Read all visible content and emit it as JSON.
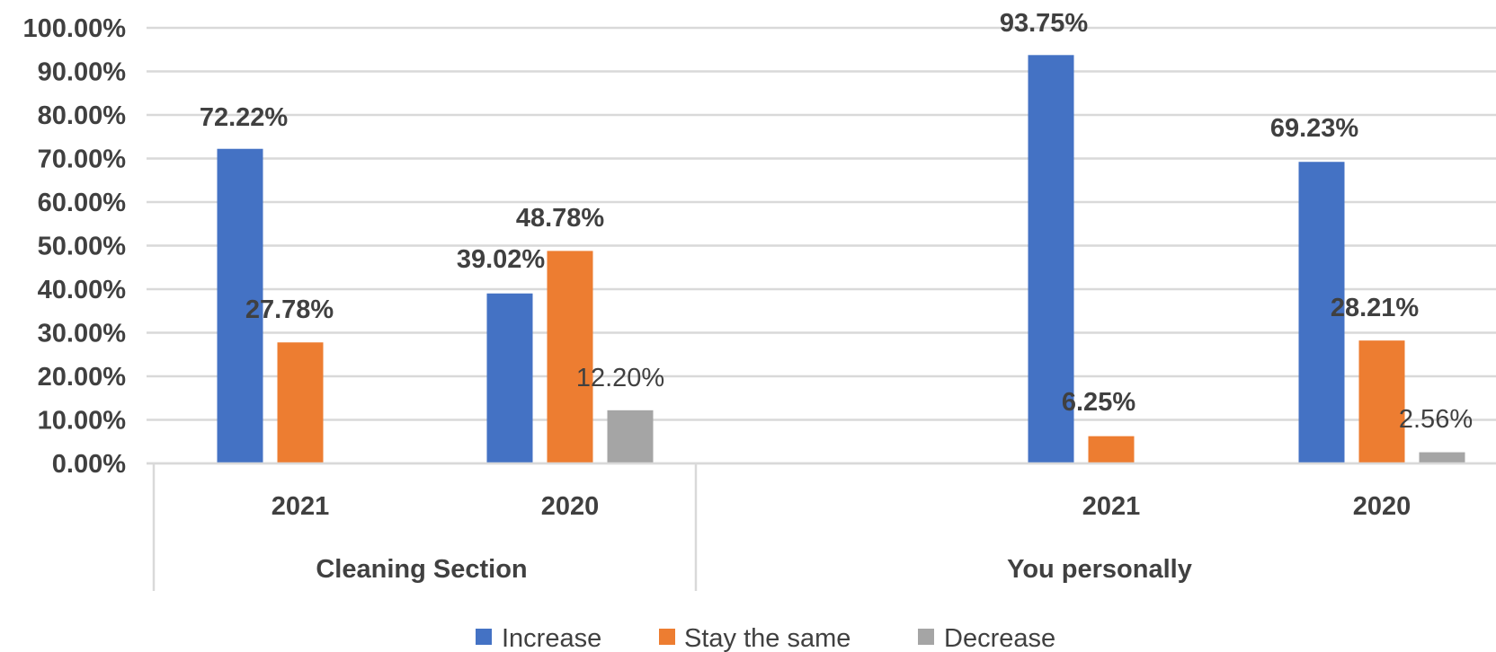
{
  "chart_data": {
    "type": "bar",
    "groups": [
      {
        "label": "Cleaning Section",
        "categories": [
          "2021",
          "2020"
        ]
      },
      {
        "label": "You personally",
        "categories": [
          "2021",
          "2020"
        ]
      }
    ],
    "categories": [
      "2021",
      "2020",
      "2021",
      "2020"
    ],
    "series": [
      {
        "name": "Increase",
        "color": "#4472C4",
        "values": [
          72.22,
          39.02,
          93.75,
          69.23
        ],
        "labels": [
          "72.22%",
          "39.02%",
          "93.75%",
          "69.23%"
        ],
        "label_bold": true
      },
      {
        "name": "Stay the same",
        "color": "#ED7D31",
        "values": [
          27.78,
          48.78,
          6.25,
          28.21
        ],
        "labels": [
          "27.78%",
          "48.78%",
          "6.25%",
          "28.21%"
        ],
        "label_bold": true
      },
      {
        "name": "Decrease",
        "color": "#A5A5A5",
        "values": [
          null,
          12.2,
          null,
          2.56
        ],
        "labels": [
          "",
          "12.20%",
          "",
          "2.56%"
        ],
        "label_bold": false
      }
    ],
    "yticks": [
      "0.00%",
      "10.00%",
      "20.00%",
      "30.00%",
      "40.00%",
      "50.00%",
      "60.00%",
      "70.00%",
      "80.00%",
      "90.00%",
      "100.00%"
    ],
    "ylim": [
      0,
      100
    ],
    "grid": true,
    "legend": "bottom",
    "title": "",
    "xlabel": "",
    "ylabel": ""
  }
}
